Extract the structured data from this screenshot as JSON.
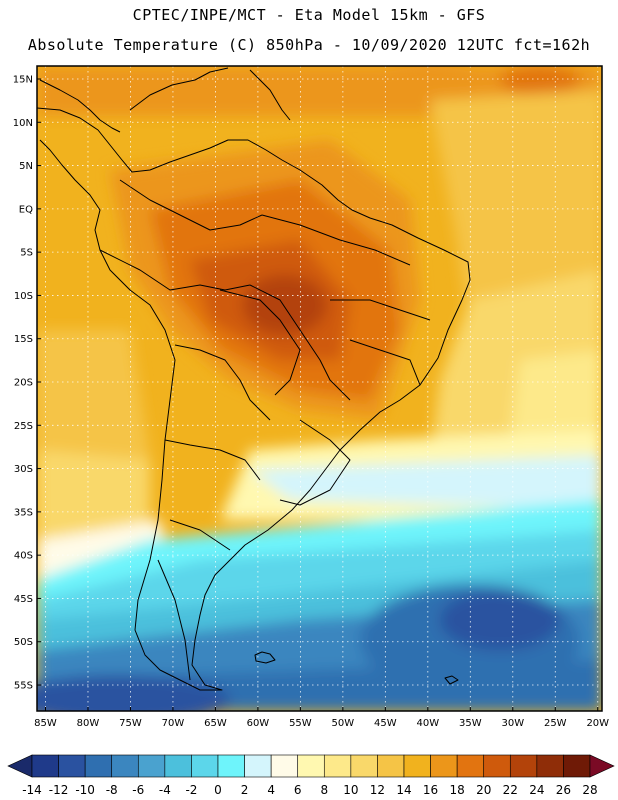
{
  "header": {
    "line1": "CPTEC/INPE/MCT -  Eta Model 15km - GFS",
    "line2": "Absolute Temperature (C) 850hPa - 10/09/2020 12UTC fct=162h"
  },
  "map": {
    "lat_labels": [
      "15N",
      "10N",
      "5N",
      "EQ",
      "5S",
      "10S",
      "15S",
      "20S",
      "25S",
      "30S",
      "35S",
      "40S",
      "45S",
      "50S",
      "55S"
    ],
    "lon_labels": [
      "85W",
      "80W",
      "75W",
      "70W",
      "65W",
      "60W",
      "55W",
      "50W",
      "45W",
      "40W",
      "35W",
      "30W",
      "25W",
      "20W"
    ],
    "lat_values": [
      15,
      10,
      5,
      0,
      -5,
      -10,
      -15,
      -20,
      -25,
      -30,
      -35,
      -40,
      -45,
      -50,
      -55
    ],
    "lon_values": [
      -85,
      -80,
      -75,
      -70,
      -65,
      -60,
      -55,
      -50,
      -45,
      -40,
      -35,
      -30,
      -25,
      -20
    ],
    "lat_range": [
      -58,
      16.5
    ],
    "lon_range": [
      -86,
      -19.5
    ]
  },
  "colorbar": {
    "labels": [
      "-14",
      "-12",
      "-10",
      "-8",
      "-6",
      "-4",
      "-2",
      "0",
      "2",
      "4",
      "6",
      "8",
      "10",
      "12",
      "14",
      "16",
      "18",
      "20",
      "22",
      "24",
      "26",
      "28"
    ],
    "colors": [
      "#1f3a8a",
      "#2a52a0",
      "#2f6fb0",
      "#3b86bf",
      "#4aa2cf",
      "#4cc0dc",
      "#5cd6ea",
      "#6ef4fb",
      "#d4f5fc",
      "#fffbe8",
      "#fff8b0",
      "#fde98a",
      "#f9d86a",
      "#f5c446",
      "#f1b21e",
      "#ec961a",
      "#e27410",
      "#cf5a0c",
      "#b3430a",
      "#8f2d08",
      "#6f1a06"
    ],
    "low_arrow": "#1a2a6a",
    "high_arrow": "#7a0a25"
  }
}
